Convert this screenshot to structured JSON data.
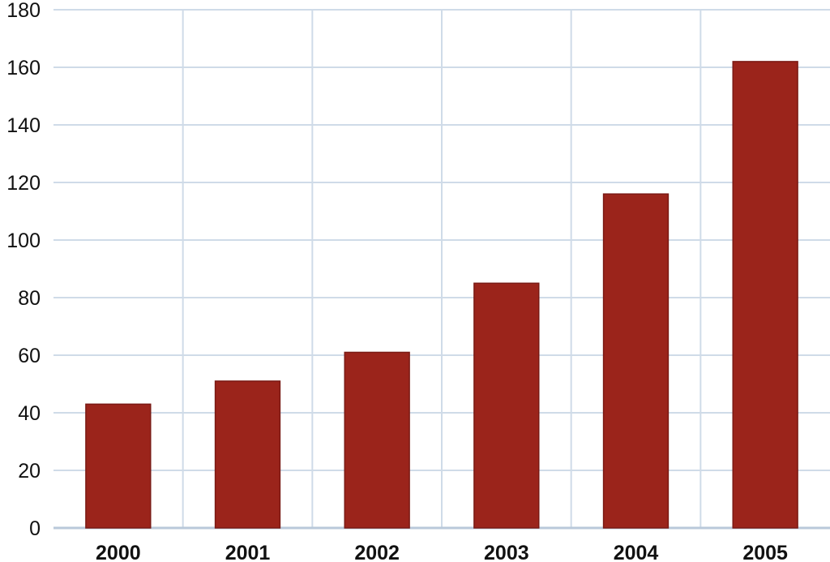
{
  "chart_data": {
    "type": "bar",
    "title": "",
    "xlabel": "",
    "ylabel": "",
    "categories": [
      "2000",
      "2001",
      "2002",
      "2003",
      "2004",
      "2005"
    ],
    "values": [
      43,
      51,
      61,
      85,
      116,
      162
    ],
    "ylim": [
      0,
      180
    ],
    "yticks": [
      0,
      20,
      40,
      60,
      80,
      100,
      120,
      140,
      160,
      180
    ],
    "grid": true,
    "legend": "none",
    "colors": {
      "bar": "#9b241b",
      "bar_edge": "#7a1a14",
      "grid": "#cfdbe8",
      "axis": "#b9c9da",
      "text": "#111111",
      "background": "#ffffff"
    }
  }
}
